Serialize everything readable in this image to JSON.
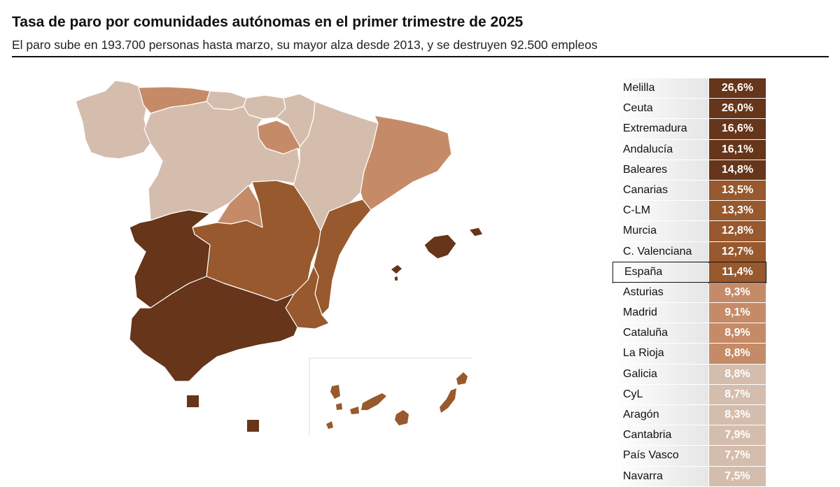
{
  "header": {
    "title": "Tasa de paro por comunidades autónomas en el primer trimestre de 2025",
    "subtitle": "El paro sube en 193.700 personas hasta marzo, su mayor alza desde 2013, y se destruyen 92.500 empleos"
  },
  "colors": {
    "very_high": "#66351a",
    "high": "#97592d",
    "medium": "#c58b68",
    "low": "#d5bdae",
    "region_border": "#ffffff"
  },
  "ranking": [
    {
      "region": "Melilla",
      "rate": 26.6,
      "label": "26,6%",
      "color": "#66351a"
    },
    {
      "region": "Ceuta",
      "rate": 26.0,
      "label": "26,0%",
      "color": "#66351a"
    },
    {
      "region": "Extremadura",
      "rate": 16.6,
      "label": "16,6%",
      "color": "#66351a"
    },
    {
      "region": "Andalucía",
      "rate": 16.1,
      "label": "16,1%",
      "color": "#66351a"
    },
    {
      "region": "Baleares",
      "rate": 14.8,
      "label": "14,8%",
      "color": "#66351a"
    },
    {
      "region": "Canarias",
      "rate": 13.5,
      "label": "13,5%",
      "color": "#97592d"
    },
    {
      "region": "C-LM",
      "rate": 13.3,
      "label": "13,3%",
      "color": "#97592d"
    },
    {
      "region": "Murcia",
      "rate": 12.8,
      "label": "12,8%",
      "color": "#97592d"
    },
    {
      "region": "C. Valenciana",
      "rate": 12.7,
      "label": "12,7%",
      "color": "#97592d"
    },
    {
      "region": "España",
      "rate": 11.4,
      "label": "11,4%",
      "color": "#97592d",
      "highlight": true
    },
    {
      "region": "Asturias",
      "rate": 9.3,
      "label": "9,3%",
      "color": "#c58b68"
    },
    {
      "region": "Madrid",
      "rate": 9.1,
      "label": "9,1%",
      "color": "#c58b68"
    },
    {
      "region": "Cataluña",
      "rate": 8.9,
      "label": "8,9%",
      "color": "#c58b68"
    },
    {
      "region": "La Rioja",
      "rate": 8.8,
      "label": "8,8%",
      "color": "#c58b68"
    },
    {
      "region": "Galicia",
      "rate": 8.8,
      "label": "8,8%",
      "color": "#d5bdae"
    },
    {
      "region": "CyL",
      "rate": 8.7,
      "label": "8,7%",
      "color": "#d5bdae"
    },
    {
      "region": "Aragón",
      "rate": 8.3,
      "label": "8,3%",
      "color": "#d5bdae"
    },
    {
      "region": "Cantabria",
      "rate": 7.9,
      "label": "7,9%",
      "color": "#d5bdae"
    },
    {
      "region": "País Vasco",
      "rate": 7.7,
      "label": "7,7%",
      "color": "#d5bdae"
    },
    {
      "region": "Navarra",
      "rate": 7.5,
      "label": "7,5%",
      "color": "#d5bdae"
    }
  ]
}
